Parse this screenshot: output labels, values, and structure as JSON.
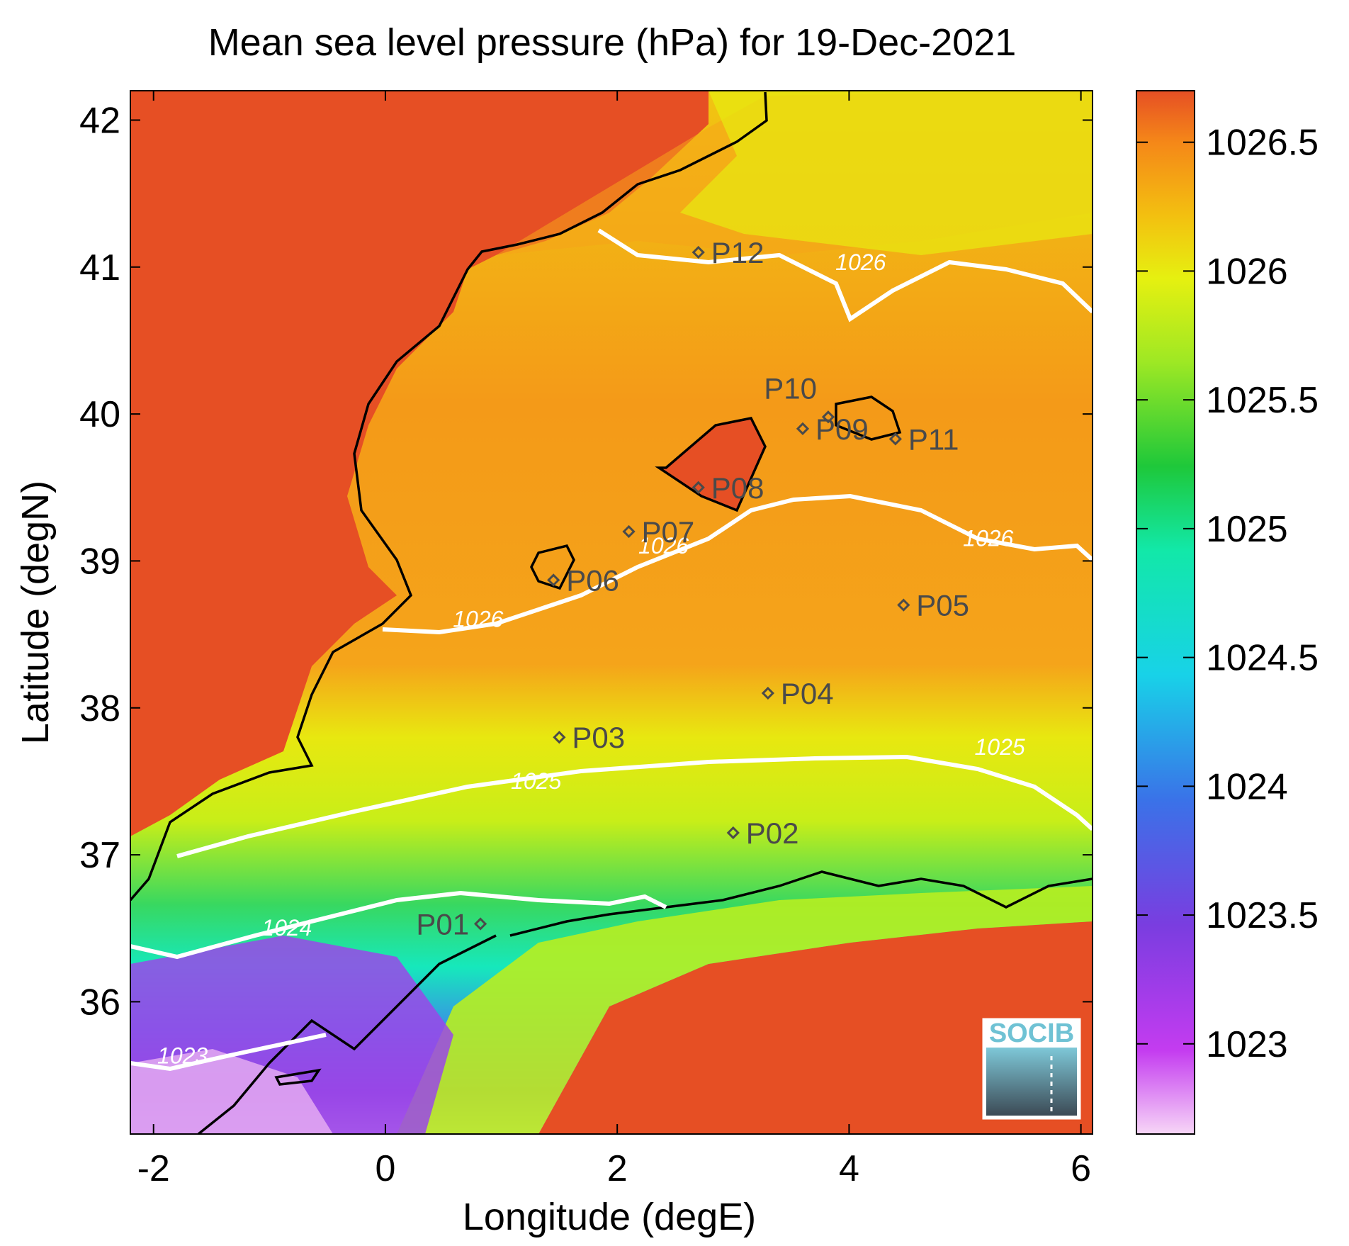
{
  "title": "Mean sea level pressure (hPa) for 19-Dec-2021",
  "xlabel": "Longitude (degE)",
  "ylabel": "Latitude (degN)",
  "x_ticks": [
    "-2",
    "0",
    "2",
    "4",
    "6"
  ],
  "y_ticks": [
    "42",
    "41",
    "40",
    "39",
    "38",
    "37",
    "36"
  ],
  "colorbar_ticks": [
    "1026.5",
    "1026",
    "1025.5",
    "1025",
    "1024.5",
    "1024",
    "1023.5",
    "1023"
  ],
  "logo_text": "SOCIB",
  "stations": [
    {
      "id": "P01",
      "lon": 0.82,
      "lat": 36.53
    },
    {
      "id": "P02",
      "lon": 3.0,
      "lat": 37.15
    },
    {
      "id": "P03",
      "lon": 1.5,
      "lat": 37.8
    },
    {
      "id": "P04",
      "lon": 3.3,
      "lat": 38.1
    },
    {
      "id": "P05",
      "lon": 4.47,
      "lat": 38.7
    },
    {
      "id": "P06",
      "lon": 1.45,
      "lat": 38.87
    },
    {
      "id": "P07",
      "lon": 2.1,
      "lat": 39.2
    },
    {
      "id": "P08",
      "lon": 2.7,
      "lat": 39.5
    },
    {
      "id": "P09",
      "lon": 3.6,
      "lat": 39.9
    },
    {
      "id": "P10",
      "lon": 3.82,
      "lat": 39.98
    },
    {
      "id": "P11",
      "lon": 4.4,
      "lat": 39.83
    },
    {
      "id": "P12",
      "lon": 2.7,
      "lat": 41.1
    }
  ],
  "contour_labels": [
    {
      "text": "1026",
      "lon": 4.1,
      "lat": 40.98
    },
    {
      "text": "1026",
      "lon": 5.2,
      "lat": 39.1
    },
    {
      "text": "1026",
      "lon": 2.4,
      "lat": 39.05
    },
    {
      "text": "1026",
      "lon": 0.8,
      "lat": 38.55
    },
    {
      "text": "1025",
      "lon": 5.3,
      "lat": 37.68
    },
    {
      "text": "1025",
      "lon": 1.3,
      "lat": 37.45
    },
    {
      "text": "1024",
      "lon": -0.85,
      "lat": 36.45
    },
    {
      "text": "1023",
      "lon": -1.75,
      "lat": 35.58
    }
  ],
  "chart_data": {
    "type": "heatmap",
    "title": "Mean sea level pressure (hPa) for 19-Dec-2021",
    "xlabel": "Longitude (degE)",
    "ylabel": "Latitude (degN)",
    "xlim": [
      -2.2,
      6.1
    ],
    "ylim": [
      35.1,
      42.2
    ],
    "colorbar": {
      "min": 1022.65,
      "max": 1026.7
    },
    "contour_levels": [
      1023,
      1024,
      1025,
      1026
    ],
    "colors": {
      "cmap": [
        "#f0b4f0",
        "#c43cf0",
        "#7a3de0",
        "#3a72e8",
        "#18d2e8",
        "#12e8a8",
        "#1ec83a",
        "#9ee824",
        "#e6f010",
        "#f3c010",
        "#f58818",
        "#e64f24"
      ]
    }
  }
}
